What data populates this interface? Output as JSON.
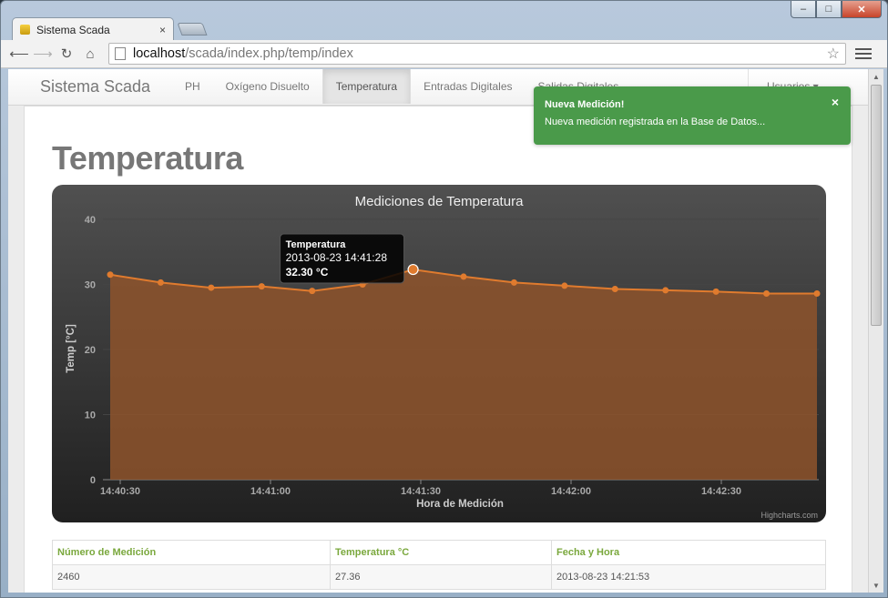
{
  "browser": {
    "tab_title": "Sistema Scada",
    "tab_close": "×",
    "url_host": "localhost",
    "url_path": "/scada/index.php/temp/index",
    "window_controls": {
      "minimize": "–",
      "maximize": "□",
      "close": "✕"
    }
  },
  "nav": {
    "brand": "Sistema Scada",
    "items": [
      {
        "label": "PH"
      },
      {
        "label": "Oxígeno Disuelto"
      },
      {
        "label": "Temperatura",
        "active": true
      },
      {
        "label": "Entradas Digitales"
      },
      {
        "label": "Salidas Digitales"
      }
    ],
    "user_menu": "Usuarios ▾"
  },
  "page": {
    "title": "Temperatura"
  },
  "notification": {
    "title": "Nueva Medición!",
    "message": "Nueva medición registrada en la Base de Datos...",
    "close": "×"
  },
  "chart_data": {
    "type": "area",
    "title": "Mediciones de Temperatura",
    "xlabel": "Hora de Medición",
    "ylabel": "Temp [°C]",
    "ylim": [
      0,
      40
    ],
    "yticks": [
      0,
      10,
      20,
      30,
      40
    ],
    "xticks": [
      "14:40:30",
      "14:41:00",
      "14:41:30",
      "14:42:00",
      "14:42:30"
    ],
    "credits": "Highcharts.com",
    "series": [
      {
        "values": [
          31.5,
          30.3,
          29.5,
          29.7,
          29.0,
          30.0,
          32.3,
          31.2,
          30.3,
          29.8,
          29.3,
          29.1,
          28.9,
          28.6,
          28.6
        ]
      }
    ],
    "tooltip": {
      "series": "Temperatura",
      "datetime": "2013-08-23 14:41:28",
      "value": "32.30 °C",
      "point_index": 6
    },
    "colors": {
      "line": "#e07b2e",
      "fill": "#8e532c"
    }
  },
  "table": {
    "headers": [
      "Número de Medición",
      "Temperatura °C",
      "Fecha y Hora"
    ],
    "rows": [
      [
        "2460",
        "27.36",
        "2013-08-23 14:21:53"
      ]
    ]
  }
}
